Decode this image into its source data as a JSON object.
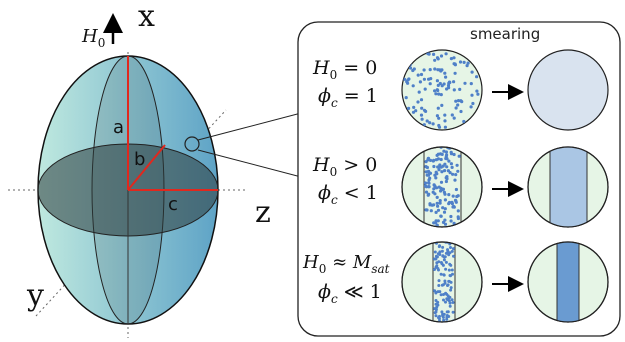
{
  "axes": {
    "x": "x",
    "y": "y",
    "z": "z"
  },
  "field_label": {
    "symbol": "H",
    "sub": "0"
  },
  "semi_axes": {
    "a": "a",
    "b": "b",
    "c": "c"
  },
  "panel_title": "smearing",
  "rows": [
    {
      "field_relation": {
        "symbol": "H",
        "sub": "0",
        "relation": "=",
        "value": "0"
      },
      "fraction": {
        "symbol": "ϕ",
        "sub": "c",
        "relation": "=",
        "value": "1"
      },
      "before_icon": "dots-full-circle",
      "after_icon": "uniform-disk",
      "arrow_icon": "right-arrow-icon"
    },
    {
      "field_relation": {
        "symbol": "H",
        "sub": "0",
        "relation": ">",
        "value": "0"
      },
      "fraction": {
        "symbol": "ϕ",
        "sub": "c",
        "relation": "<",
        "value": "1"
      },
      "before_icon": "dots-wide-band",
      "after_icon": "wide-band",
      "arrow_icon": "right-arrow-icon"
    },
    {
      "field_relation": {
        "symbol": "H",
        "sub": "0",
        "relation": "≈",
        "value": "M",
        "value_sub": "sat"
      },
      "fraction": {
        "symbol": "ϕ",
        "sub": "c",
        "relation": "≪",
        "value": "1"
      },
      "before_icon": "dots-narrow-band",
      "after_icon": "narrow-band",
      "arrow_icon": "right-arrow-icon"
    }
  ],
  "colors": {
    "ellipsoid_light": "#bfe9df",
    "ellipsoid_dark": "#5ea3c6",
    "axis_red": "#e0281e",
    "disk_green": "#e6f5e6",
    "dot_blue": "#4f80c8",
    "smear_uniform": "#d9e3ef",
    "smear_wide": "#aac6e4",
    "smear_narrow": "#6a9bd1"
  }
}
